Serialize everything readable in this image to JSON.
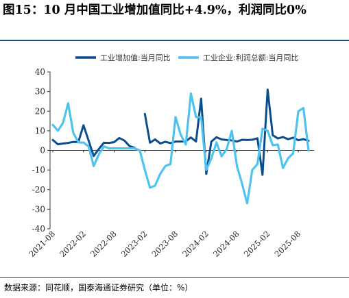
{
  "title": "图15：10 月中国工业增加值同比+4.9%，利润同比0%",
  "source": "数据来源：同花顺，国泰海通证券研究（单位：%）",
  "colors": {
    "series1": "#0b4c8f",
    "series2": "#4fc3ef",
    "bar": "#1f4e8c"
  },
  "chart_data": {
    "type": "line",
    "title": "图15：10 月中国工业增加值同比+4.9%，利润同比0%",
    "xlabel": "",
    "ylabel": "",
    "ylim": [
      -40,
      40
    ],
    "yticks": [
      "-40",
      "-30",
      "-20",
      "-10",
      "0",
      "10",
      "20",
      "30",
      "40"
    ],
    "xticks": [
      "2021-08",
      "2022-02",
      "2022-08",
      "2023-02",
      "2023-08",
      "2024-02",
      "2024-08",
      "2025-02",
      "2025-08"
    ],
    "legend_position": "top",
    "grid": false,
    "x_start": "2021-08",
    "series": [
      {
        "name": "工业增加值:当月同比",
        "values": [
          5.3,
          3.1,
          3.5,
          3.8,
          4.3,
          4.3,
          12.8,
          5.0,
          -2.9,
          0.7,
          3.9,
          3.8,
          4.2,
          6.3,
          5.0,
          2.2,
          1.3,
          null,
          18.6,
          3.9,
          5.6,
          3.5,
          4.4,
          3.7,
          4.5,
          4.5,
          4.6,
          6.6,
          4.5,
          26.4,
          -12.0,
          4.5,
          6.7,
          5.6,
          5.3,
          5.1,
          4.5,
          5.4,
          5.3,
          5.4,
          6.2,
          -12.5,
          31.0,
          7.7,
          6.1,
          6.8,
          5.7,
          6.5,
          5.2,
          5.7,
          4.9
        ]
      },
      {
        "name": "工业企业:利润总额:当月同比",
        "values": [
          13.0,
          10.0,
          14.0,
          24.0,
          9.0,
          4.0,
          4.0,
          2.0,
          -8.0,
          -2.0,
          2.0,
          1.0,
          1.0,
          1.0,
          1.0,
          1.0,
          1.0,
          0.0,
          -10.0,
          -19.0,
          -18.0,
          -12.0,
          -8.0,
          -7.0,
          17.0,
          8.0,
          3.0,
          29.0,
          17.0,
          17.0,
          -10.0,
          -4.0,
          4.0,
          -3.0,
          0.7,
          10.0,
          -8.0,
          -17.0,
          -27.0,
          -10.0,
          -7.0,
          11.0,
          10.0,
          2.6,
          3.0,
          -9.0,
          -4.0,
          -1.5,
          20.0,
          21.6,
          0.0
        ]
      }
    ]
  }
}
